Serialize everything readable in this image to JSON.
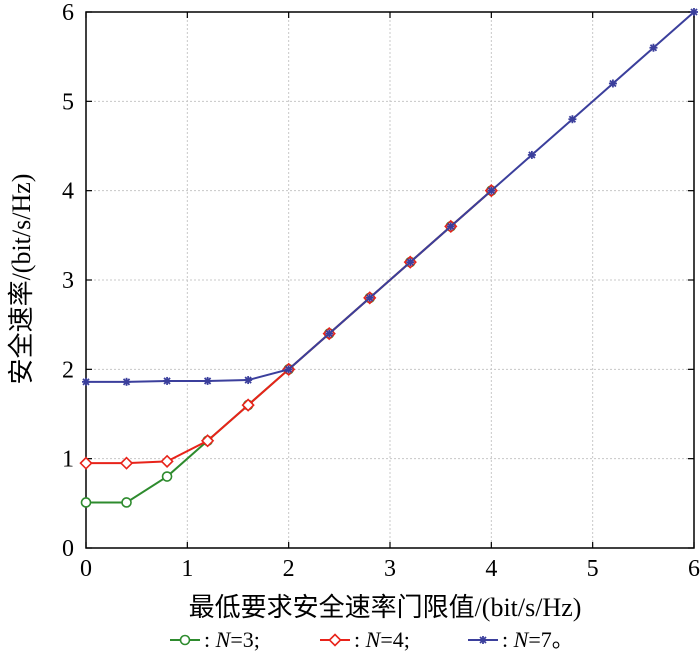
{
  "chart_data": {
    "type": "line",
    "xlabel": "最低要求安全速率门限值/(bit/s/Hz)",
    "ylabel": "安全速率/(bit/s/Hz)",
    "xlim": [
      0,
      6
    ],
    "ylim": [
      0,
      6
    ],
    "xticks": [
      "0",
      "1",
      "2",
      "3",
      "4",
      "5",
      "6"
    ],
    "yticks": [
      "0",
      "1",
      "2",
      "3",
      "4",
      "5",
      "6"
    ],
    "grid": true,
    "legend_position": "bottom",
    "series": [
      {
        "name": ": N=3;",
        "legend_prefix": ": ",
        "legend_var": "N",
        "legend_suffix": "=3;",
        "color": "#2e8b2e",
        "marker": "circle",
        "x": [
          0,
          0.4,
          0.8,
          1.2,
          1.6,
          2.0,
          2.4,
          2.8,
          3.2,
          3.6,
          4.0
        ],
        "y": [
          0.51,
          0.51,
          0.8,
          1.2,
          1.6,
          2.0,
          2.4,
          2.8,
          3.2,
          3.6,
          4.0
        ]
      },
      {
        "name": ": N=4;",
        "legend_prefix": ": ",
        "legend_var": "N",
        "legend_suffix": "=4;",
        "color": "#e8231a",
        "marker": "diamond",
        "x": [
          0,
          0.4,
          0.8,
          1.2,
          1.6,
          2.0,
          2.4,
          2.8,
          3.2,
          3.6,
          4.0
        ],
        "y": [
          0.95,
          0.95,
          0.97,
          1.2,
          1.6,
          2.0,
          2.4,
          2.8,
          3.2,
          3.6,
          4.0
        ]
      },
      {
        "name": ": N=7。",
        "legend_prefix": ": ",
        "legend_var": "N",
        "legend_suffix": "=7。",
        "color": "#3b3f9c",
        "marker": "star",
        "x": [
          0,
          0.4,
          0.8,
          1.2,
          1.6,
          2.0,
          2.4,
          2.8,
          3.2,
          3.6,
          4.0,
          4.4,
          4.8,
          5.2,
          5.6,
          6.0
        ],
        "y": [
          1.86,
          1.86,
          1.87,
          1.87,
          1.88,
          2.0,
          2.4,
          2.8,
          3.2,
          3.6,
          4.0,
          4.4,
          4.8,
          5.2,
          5.6,
          6.0
        ]
      }
    ]
  }
}
